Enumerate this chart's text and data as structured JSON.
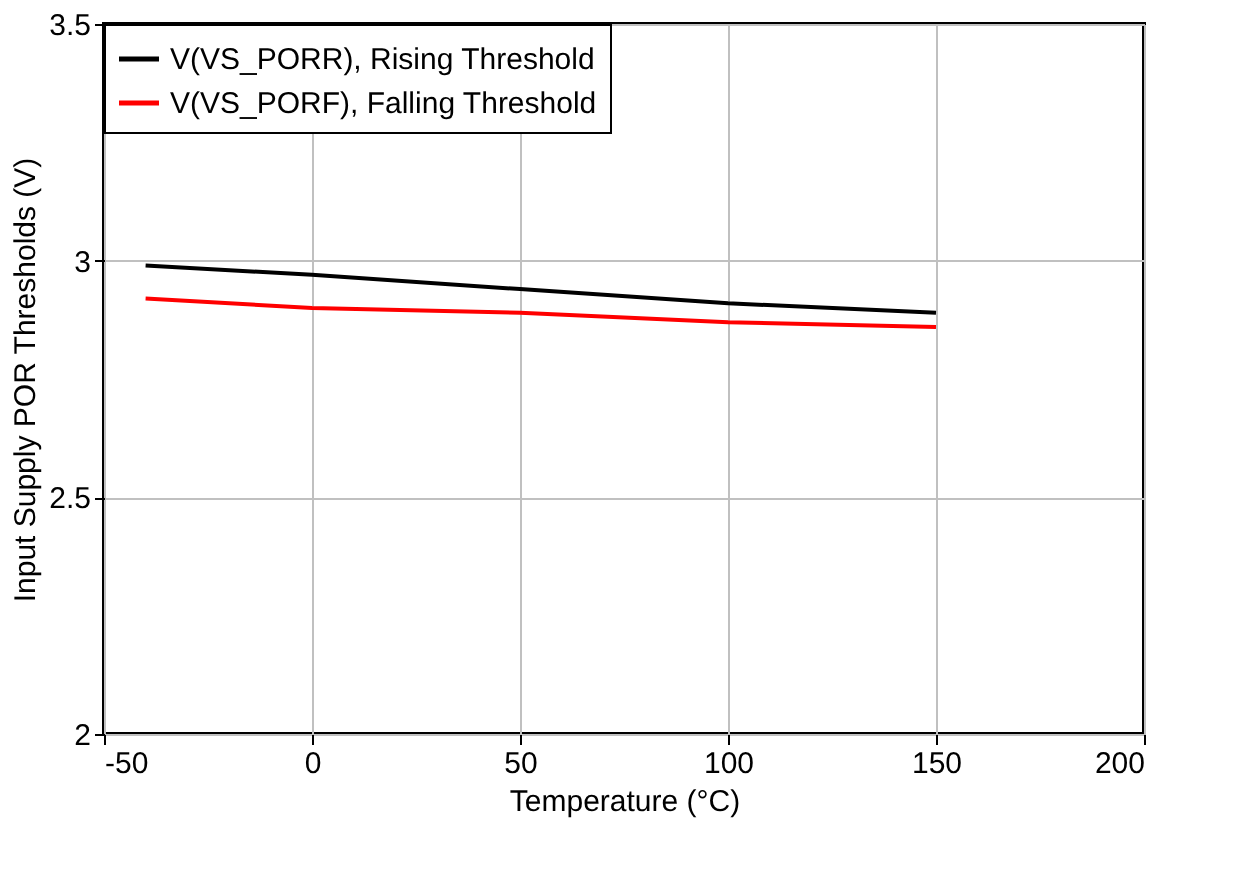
{
  "chart_data": {
    "type": "line",
    "xlabel": "Temperature (°C)",
    "ylabel": "Input Supply POR Thresholds (V)",
    "x": [
      -40,
      0,
      50,
      100,
      150
    ],
    "series": [
      {
        "name": "V(VS_PORR), Rising Threshold",
        "color": "#000000",
        "values": [
          2.99,
          2.97,
          2.94,
          2.91,
          2.89
        ]
      },
      {
        "name": "V(VS_PORF), Falling Threshold",
        "color": "#ff0000",
        "values": [
          2.92,
          2.9,
          2.89,
          2.87,
          2.86
        ]
      }
    ],
    "xlim": [
      -50,
      200
    ],
    "xticks": [
      -50,
      0,
      50,
      100,
      150,
      200
    ],
    "ylim": [
      2,
      3.5
    ],
    "yticks": [
      2,
      2.5,
      3,
      3.5
    ],
    "grid": true,
    "legend": "top left",
    "marker": "none",
    "line_style": "solid"
  }
}
